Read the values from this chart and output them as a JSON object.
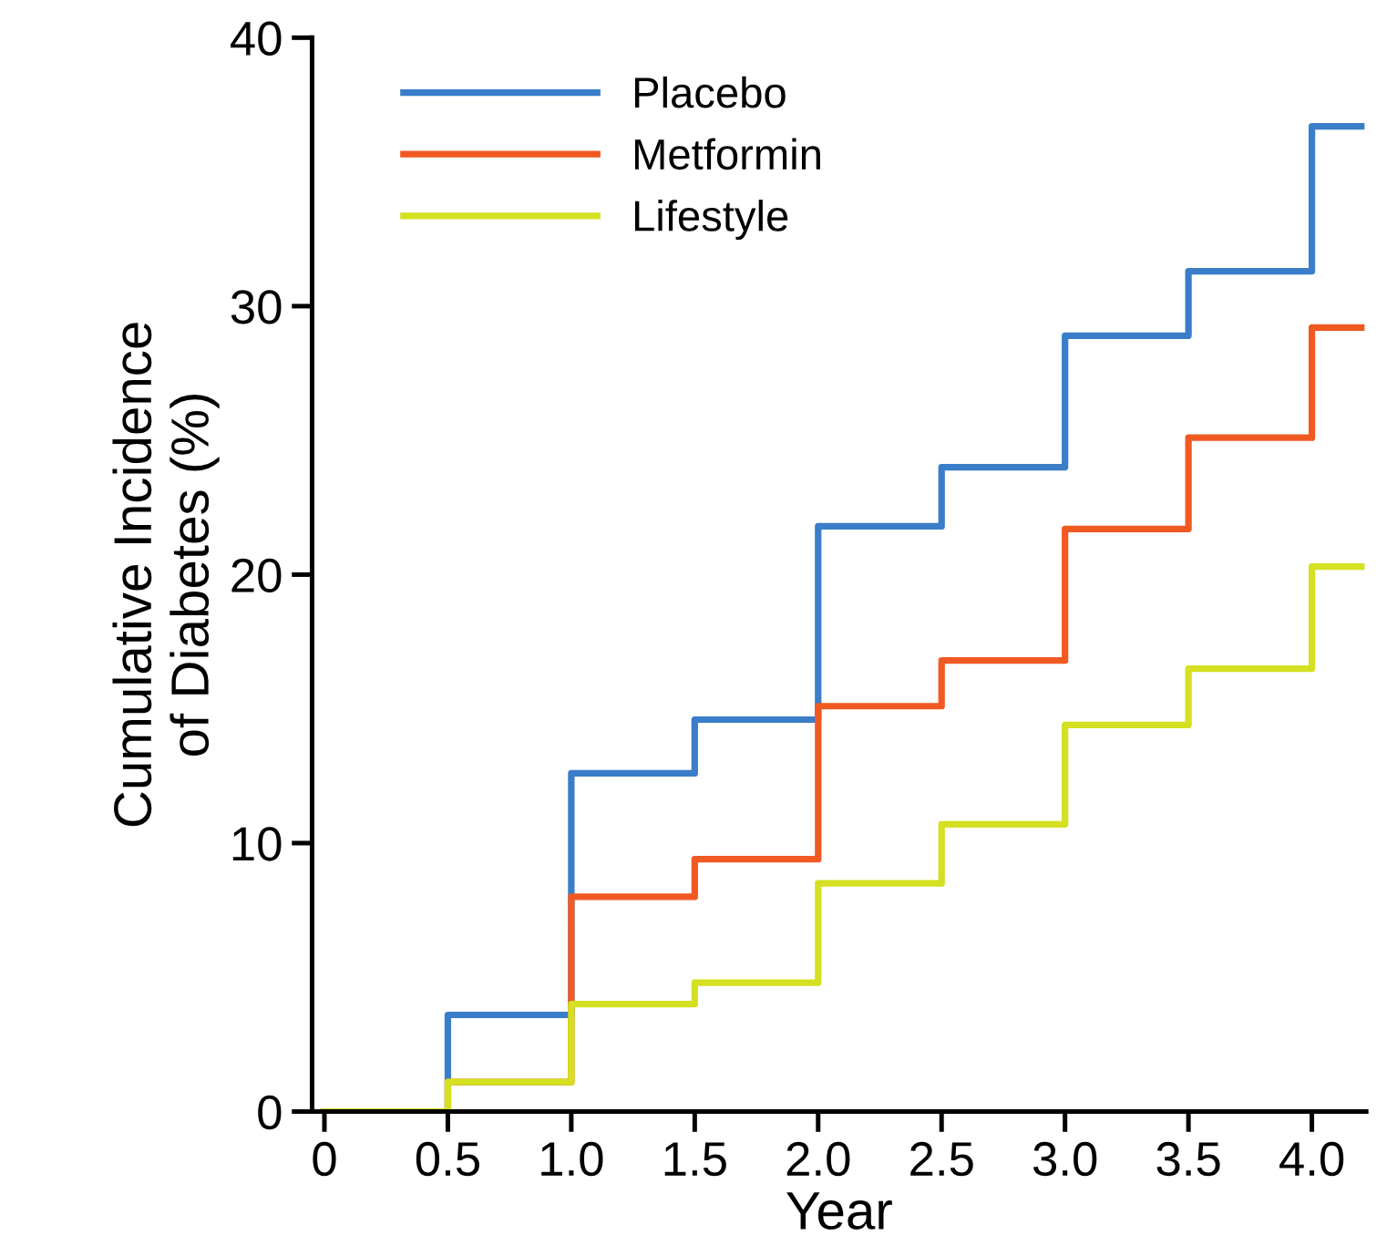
{
  "chart_data": {
    "type": "step",
    "xlabel": "Year",
    "ylabel": "Cumulative Incidence\nof Diabetes (%)",
    "x": [
      0,
      0.5,
      1.0,
      1.5,
      2.0,
      2.5,
      3.0,
      3.5,
      4.0,
      4.2
    ],
    "series": [
      {
        "name": "Placebo",
        "color": "#3a7dc9",
        "values": [
          0,
          3.6,
          12.6,
          14.6,
          21.8,
          24.0,
          28.9,
          31.3,
          36.7,
          36.7
        ]
      },
      {
        "name": "Metformin",
        "color": "#f05a22",
        "values": [
          0,
          1.1,
          8.0,
          9.4,
          15.1,
          16.8,
          21.7,
          25.1,
          29.2,
          29.2
        ]
      },
      {
        "name": "Lifestyle",
        "color": "#d4e021",
        "values": [
          0,
          1.1,
          4.0,
          4.8,
          8.5,
          10.7,
          14.4,
          16.5,
          20.3,
          20.3
        ]
      }
    ],
    "xlim": [
      -0.05,
      4.22
    ],
    "ylim": [
      0,
      40
    ],
    "xticks": [
      0,
      {
        "value": 0.5,
        "label": "0.5"
      },
      {
        "value": 1.0,
        "label": "1.0"
      },
      {
        "value": 1.5,
        "label": "1.5"
      },
      {
        "value": 2.0,
        "label": "2.0"
      },
      {
        "value": 2.5,
        "label": "2.5"
      },
      {
        "value": 3.0,
        "label": "3.0"
      },
      {
        "value": 3.5,
        "label": "3.5"
      },
      {
        "value": 4.0,
        "label": "4.0"
      }
    ],
    "yticks": [
      0,
      10,
      20,
      30,
      40
    ],
    "grid": false,
    "legend": "top left",
    "line_style": "solid"
  }
}
